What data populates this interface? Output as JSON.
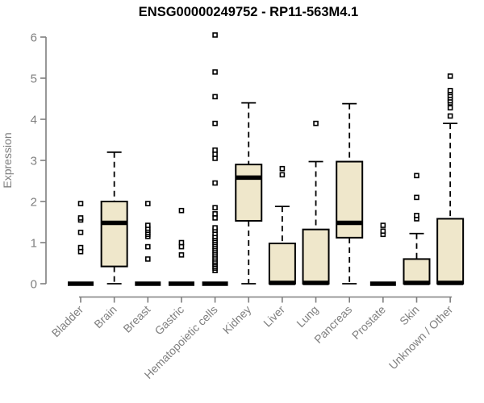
{
  "colors": {
    "box_fill": "#efe7cb",
    "box_stroke": "#000000",
    "median": "#000000",
    "whisker": "#000000",
    "outlier_fill": "#ffffff",
    "axis": "#7f7f7f",
    "title": "#000000"
  },
  "chart_data": {
    "type": "boxplot",
    "title": "ENSG00000249752 - RP11-563M4.1",
    "xlabel": "",
    "ylabel": "Expression",
    "ylim": [
      0,
      6
    ],
    "yticks": [
      0,
      1,
      2,
      3,
      4,
      5,
      6
    ],
    "grid": false,
    "legend": "none",
    "categories": [
      "Bladder",
      "Brain",
      "Breast",
      "Gastric",
      "Hematopoietic cells",
      "Kidney",
      "Liver",
      "Lung",
      "Pancreas",
      "Prostate",
      "Skin",
      "Unknown / Other"
    ],
    "series": [
      {
        "label": "Bladder",
        "min": 0,
        "q1": 0,
        "median": 0,
        "q3": 0,
        "max": 0,
        "outliers": [
          0.78,
          0.88,
          1.25,
          1.55,
          1.6,
          1.95
        ]
      },
      {
        "label": "Brain",
        "min": 0,
        "q1": 0.42,
        "median": 1.48,
        "q3": 2.0,
        "max": 3.2,
        "outliers": []
      },
      {
        "label": "Breast",
        "min": 0,
        "q1": 0,
        "median": 0,
        "q3": 0,
        "max": 0,
        "outliers": [
          0.6,
          0.9,
          1.15,
          1.2,
          1.25,
          1.3,
          1.35,
          1.42,
          1.95
        ]
      },
      {
        "label": "Gastric",
        "min": 0,
        "q1": 0,
        "median": 0,
        "q3": 0,
        "max": 0,
        "outliers": [
          0.7,
          0.9,
          1.0,
          1.78
        ]
      },
      {
        "label": "Hematopoietic cells",
        "min": 0,
        "q1": 0,
        "median": 0,
        "q3": 0,
        "max": 0,
        "outliers": [
          0.32,
          0.38,
          0.42,
          0.47,
          0.51,
          0.55,
          0.6,
          0.65,
          0.7,
          0.75,
          0.8,
          0.85,
          0.9,
          0.95,
          1.0,
          1.05,
          1.1,
          1.15,
          1.22,
          1.3,
          1.36,
          1.6,
          1.7,
          1.85,
          2.45,
          3.05,
          3.15,
          3.25,
          3.9,
          4.55,
          5.15,
          6.05
        ]
      },
      {
        "label": "Kidney",
        "min": 0,
        "q1": 1.53,
        "median": 2.58,
        "q3": 2.9,
        "max": 4.4,
        "outliers": []
      },
      {
        "label": "Liver",
        "min": 0,
        "q1": 0,
        "median": 0.02,
        "q3": 0.98,
        "max": 1.88,
        "outliers": [
          2.65,
          2.8
        ]
      },
      {
        "label": "Lung",
        "min": 0,
        "q1": 0,
        "median": 0.02,
        "q3": 1.32,
        "max": 2.97,
        "outliers": [
          3.9
        ]
      },
      {
        "label": "Pancreas",
        "min": 0,
        "q1": 1.12,
        "median": 1.48,
        "q3": 2.97,
        "max": 4.38,
        "outliers": []
      },
      {
        "label": "Prostate",
        "min": 0,
        "q1": 0,
        "median": 0,
        "q3": 0,
        "max": 0,
        "outliers": [
          1.2,
          1.28,
          1.42
        ]
      },
      {
        "label": "Skin",
        "min": 0,
        "q1": 0,
        "median": 0.02,
        "q3": 0.6,
        "max": 1.22,
        "outliers": [
          1.58,
          1.66,
          2.1,
          2.63
        ]
      },
      {
        "label": "Unknown / Other",
        "min": 0,
        "q1": 0,
        "median": 0.02,
        "q3": 1.58,
        "max": 3.9,
        "outliers": [
          4.08,
          4.28,
          4.4,
          4.45,
          4.52,
          4.58,
          4.65,
          4.7,
          5.05
        ]
      }
    ]
  }
}
